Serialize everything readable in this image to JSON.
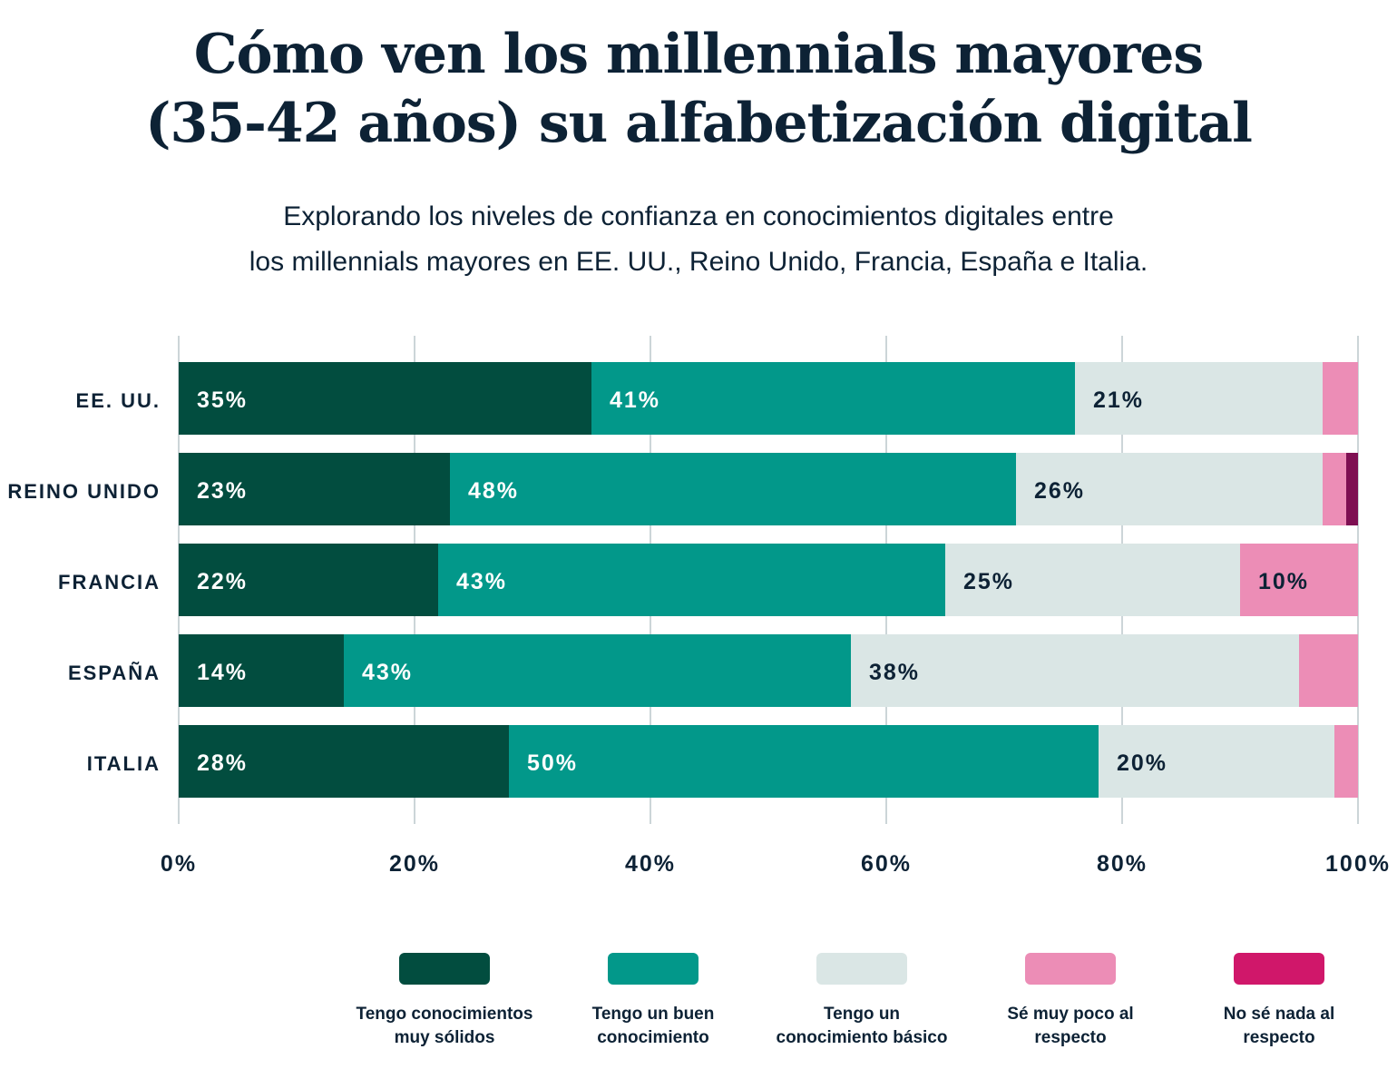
{
  "title_lines": [
    "Cómo ven los millennials mayores",
    "(35-42 años) su alfabetización digital"
  ],
  "subtitle_lines": [
    "Explorando los niveles de confianza en conocimientos digitales entre",
    "los millennials mayores en EE. UU., Reino Unido, Francia, España e Italia."
  ],
  "chart_data": {
    "type": "bar",
    "orientation": "horizontal",
    "stacked": true,
    "categories": [
      "EE. UU.",
      "REINO UNIDO",
      "FRANCIA",
      "ESPAÑA",
      "ITALIA"
    ],
    "xlim": [
      0,
      100
    ],
    "xticks": [
      "0%",
      "20%",
      "40%",
      "60%",
      "80%",
      "100%"
    ],
    "grid": true,
    "legend_position": "bottom",
    "series": [
      {
        "name": "Tengo conocimientos muy sólidos",
        "color": "#024d3f",
        "legend_color": "#024d3f",
        "label_color": "#ffffff",
        "values": [
          35,
          23,
          22,
          14,
          28
        ],
        "labels": [
          "35%",
          "23%",
          "22%",
          "14%",
          "28%"
        ]
      },
      {
        "name": "Tengo un buen conocimiento",
        "color": "#02988a",
        "legend_color": "#02988a",
        "label_color": "#ffffff",
        "values": [
          41,
          48,
          43,
          43,
          50
        ],
        "labels": [
          "41%",
          "48%",
          "43%",
          "43%",
          "50%"
        ]
      },
      {
        "name": "Tengo un conocimiento básico",
        "color": "#dae6e5",
        "legend_color": "#dae6e5",
        "label_color": "#0d2235",
        "values": [
          21,
          26,
          25,
          38,
          20
        ],
        "labels": [
          "21%",
          "26%",
          "25%",
          "38%",
          "20%"
        ]
      },
      {
        "name": "Sé muy poco al respecto",
        "color": "#ec8db6",
        "legend_color": "#ec8db6",
        "label_color": "#0d2235",
        "values": [
          3,
          2,
          10,
          5,
          2
        ],
        "labels": [
          "",
          "",
          "10%",
          "",
          ""
        ]
      },
      {
        "name": "No sé nada al respecto",
        "color": "#7e0f52",
        "legend_color": "#d0176a",
        "label_color": "#ffffff",
        "values": [
          0,
          1,
          0,
          0,
          0
        ],
        "labels": [
          "",
          "",
          "",
          "",
          ""
        ]
      }
    ]
  },
  "legend": [
    {
      "lines": [
        "Tengo conocimientos",
        "muy sólidos"
      ]
    },
    {
      "lines": [
        "Tengo un buen",
        "conocimiento"
      ]
    },
    {
      "lines": [
        "Tengo un",
        "conocimiento básico"
      ]
    },
    {
      "lines": [
        "Sé muy poco al",
        "respecto"
      ]
    },
    {
      "lines": [
        "No sé nada al",
        "respecto"
      ]
    }
  ]
}
